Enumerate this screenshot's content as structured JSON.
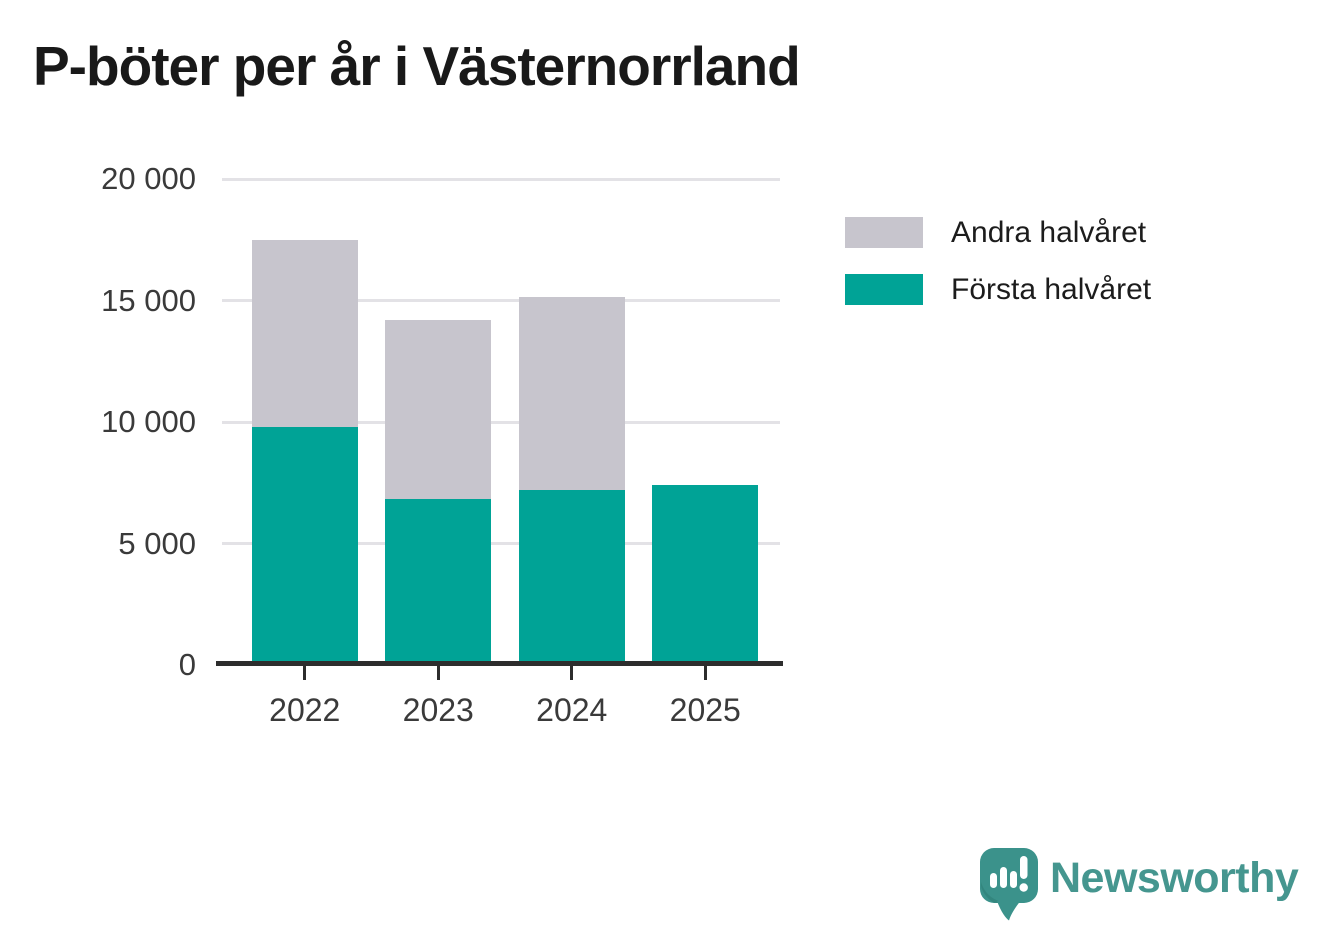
{
  "title": "P-böter per år i Västernorrland",
  "chart_data": {
    "type": "bar",
    "stacked": true,
    "title": "P-böter per år i Västernorrland",
    "categories": [
      "2022",
      "2023",
      "2024",
      "2025"
    ],
    "series": [
      {
        "name": "Första halvåret",
        "color": "#00a396",
        "values": [
          9800,
          6850,
          7200,
          7400
        ]
      },
      {
        "name": "Andra halvåret",
        "color": "#c7c5cd",
        "values": [
          7700,
          7350,
          7950,
          0
        ]
      }
    ],
    "xlabel": "",
    "ylabel": "",
    "ylim": [
      0,
      20000
    ],
    "yticks": [
      {
        "value": 0,
        "label": "0"
      },
      {
        "value": 5000,
        "label": "5 000"
      },
      {
        "value": 10000,
        "label": "10 000"
      },
      {
        "value": 15000,
        "label": "15 000"
      },
      {
        "value": 20000,
        "label": "20 000"
      }
    ],
    "grid": true,
    "grid_color": "#e3e2e6",
    "axis_color": "#2d2d2d",
    "legend_position": "top-right"
  },
  "legend": {
    "items": [
      {
        "label": "Andra halvåret",
        "color": "#c7c5cd"
      },
      {
        "label": "Första halvåret",
        "color": "#00a396"
      }
    ]
  },
  "branding": {
    "wordmark": "Newsworthy",
    "color": "#45968f",
    "icon": "newsworthy-speech-bubble-chart-icon"
  }
}
